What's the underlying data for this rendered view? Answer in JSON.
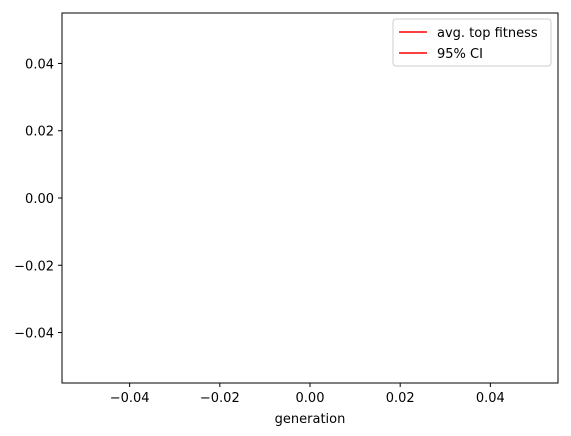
{
  "chart_data": {
    "type": "line",
    "title": "",
    "xlabel": "generation",
    "ylabel": "",
    "xlim": [
      -0.055,
      0.055
    ],
    "ylim": [
      -0.055,
      0.055
    ],
    "x_ticks": [
      -0.04,
      -0.02,
      0.0,
      0.02,
      0.04
    ],
    "x_tick_labels": [
      "−0.04",
      "−0.02",
      "0.00",
      "0.02",
      "0.04"
    ],
    "y_ticks": [
      -0.04,
      -0.02,
      0.0,
      0.02,
      0.04
    ],
    "y_tick_labels": [
      "−0.04",
      "−0.02",
      "0.00",
      "0.02",
      "0.04"
    ],
    "grid": false,
    "legend_position": "top-right",
    "series": [
      {
        "name": "avg. top fitness",
        "color": "#ff0000",
        "x": [],
        "y": []
      },
      {
        "name": "95% CI",
        "color": "#ff0000",
        "x": [],
        "y": []
      }
    ]
  }
}
